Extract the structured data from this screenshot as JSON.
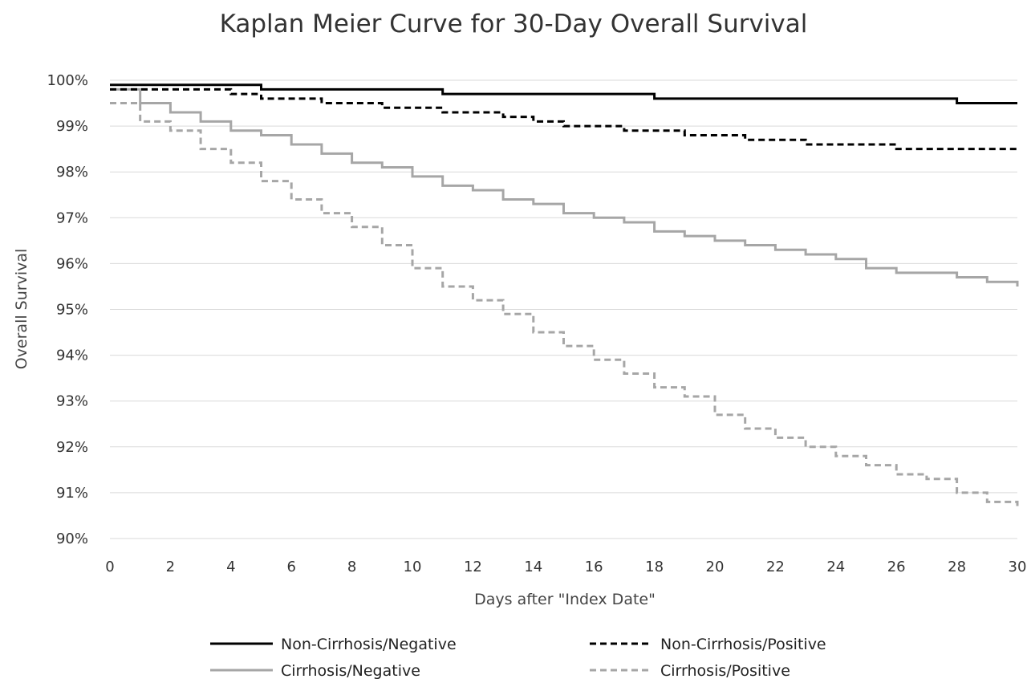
{
  "chart_data": {
    "type": "line",
    "step": true,
    "title": "Kaplan Meier Curve for 30-Day Overall Survival",
    "xlabel": "Days after \"Index Date\"",
    "ylabel": "Overall Survival",
    "xlim": [
      0,
      30
    ],
    "ylim": [
      90,
      100
    ],
    "x_ticks": [
      "0",
      "2",
      "4",
      "6",
      "8",
      "10",
      "12",
      "14",
      "16",
      "18",
      "20",
      "22",
      "24",
      "26",
      "28",
      "30"
    ],
    "y_ticks": [
      "90%",
      "91%",
      "92%",
      "93%",
      "94%",
      "95%",
      "96%",
      "97%",
      "98%",
      "99%",
      "100%"
    ],
    "grid": "horizontal",
    "legend_position": "bottom",
    "series": [
      {
        "name": "Non-Cirrhosis/Negative",
        "color": "#000000",
        "dash": "solid",
        "x": [
          0,
          5,
          11,
          18,
          28,
          30
        ],
        "y": [
          99.9,
          99.8,
          99.7,
          99.6,
          99.5,
          99.5
        ]
      },
      {
        "name": "Non-Cirrhosis/Positive",
        "color": "#000000",
        "dash": "dashed",
        "x": [
          0,
          4,
          5,
          7,
          9,
          11,
          13,
          14,
          15,
          17,
          19,
          21,
          23,
          26,
          30
        ],
        "y": [
          99.8,
          99.7,
          99.6,
          99.5,
          99.4,
          99.3,
          99.2,
          99.1,
          99.0,
          98.9,
          98.8,
          98.7,
          98.6,
          98.5,
          98.5
        ]
      },
      {
        "name": "Cirrhosis/Negative",
        "color": "#a6a6a6",
        "dash": "solid",
        "x": [
          0,
          1,
          2,
          3,
          4,
          5,
          6,
          7,
          8,
          9,
          10,
          11,
          12,
          13,
          14,
          15,
          16,
          17,
          18,
          19,
          20,
          21,
          22,
          23,
          24,
          25,
          26,
          28,
          29,
          30
        ],
        "y": [
          99.8,
          99.5,
          99.3,
          99.1,
          98.9,
          98.8,
          98.6,
          98.4,
          98.2,
          98.1,
          97.9,
          97.7,
          97.6,
          97.4,
          97.3,
          97.1,
          97.0,
          96.9,
          96.7,
          96.6,
          96.5,
          96.4,
          96.3,
          96.2,
          96.1,
          95.9,
          95.8,
          95.7,
          95.6,
          95.5
        ]
      },
      {
        "name": "Cirrhosis/Positive",
        "color": "#a6a6a6",
        "dash": "dashed",
        "x": [
          0,
          1,
          2,
          3,
          4,
          5,
          6,
          7,
          8,
          9,
          10,
          11,
          12,
          13,
          14,
          15,
          16,
          17,
          18,
          19,
          20,
          21,
          22,
          23,
          24,
          25,
          26,
          27,
          28,
          29,
          30
        ],
        "y": [
          99.5,
          99.1,
          98.9,
          98.5,
          98.2,
          97.8,
          97.4,
          97.1,
          96.8,
          96.4,
          95.9,
          95.5,
          95.2,
          94.9,
          94.5,
          94.2,
          93.9,
          93.6,
          93.3,
          93.1,
          92.7,
          92.4,
          92.2,
          92.0,
          91.8,
          91.6,
          91.4,
          91.3,
          91.0,
          90.8,
          90.7
        ]
      }
    ]
  }
}
